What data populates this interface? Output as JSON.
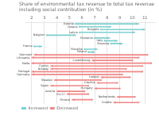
{
  "chart_data": {
    "type": "arrow",
    "title": "Share of environmental tax revenue to total tax revenue including social contribution (in %)",
    "orientation": "horizontal",
    "categories": [
      "Estonia",
      "Greece",
      "Bulgaria",
      "Latvia",
      "Belgium",
      "Romania",
      "Italy",
      "Slovenia",
      "France",
      "Slovakia",
      "Poland",
      "Denmark",
      "Lithuania",
      "Luxembourg",
      "Malta",
      "Cyprus",
      "Norway",
      "Portugal",
      "Germany",
      "Ireland",
      "Sweden",
      "Czechia",
      "Spain",
      "Hungary",
      "Austria",
      "EU-27",
      "Netherlands",
      "Finland",
      "Croatia"
    ],
    "series": [
      {
        "name": "Increased",
        "color": "#7ecfcf",
        "values": [
          [
            5.5,
            10.5
          ],
          [
            5.8,
            8.3
          ],
          [
            7.5,
            11.0
          ],
          [
            5.8,
            10.2
          ],
          [
            3.2,
            5.5
          ],
          [
            7.0,
            8.2
          ],
          [
            7.8,
            8.8
          ],
          [
            8.3,
            9.2
          ],
          [
            2.2,
            2.8
          ],
          [
            6.2,
            7.2
          ],
          [
            6.5,
            7.0
          ],
          null,
          null,
          null,
          null,
          null,
          null,
          null,
          null,
          null,
          null,
          null,
          null,
          null,
          null,
          null,
          null,
          null,
          null
        ]
      },
      {
        "name": "Decreased",
        "color": "#f08888",
        "values": [
          null,
          null,
          null,
          null,
          null,
          null,
          null,
          null,
          null,
          null,
          null,
          [
            11.2,
            2.2
          ],
          [
            10.5,
            2.0
          ],
          [
            10.0,
            6.8
          ],
          [
            11.5,
            2.0
          ],
          [
            10.8,
            3.5
          ],
          [
            9.5,
            3.5
          ],
          [
            10.8,
            2.0
          ],
          [
            9.2,
            2.0
          ],
          [
            9.8,
            7.5
          ],
          [
            7.5,
            3.8
          ],
          [
            8.8,
            7.2
          ],
          [
            6.5,
            3.5
          ],
          [
            9.0,
            7.0
          ],
          [
            6.2,
            4.0
          ],
          [
            6.5,
            4.8
          ],
          [
            10.2,
            8.8
          ],
          [
            6.8,
            5.2
          ],
          [
            10.5,
            8.5
          ]
        ]
      }
    ],
    "xlim": [
      1.5,
      11.8
    ],
    "xticks": [
      2,
      3,
      4,
      5,
      6,
      7,
      8,
      9,
      10,
      11
    ],
    "grid": true,
    "legend": "lower left",
    "tick_labels": "x"
  }
}
